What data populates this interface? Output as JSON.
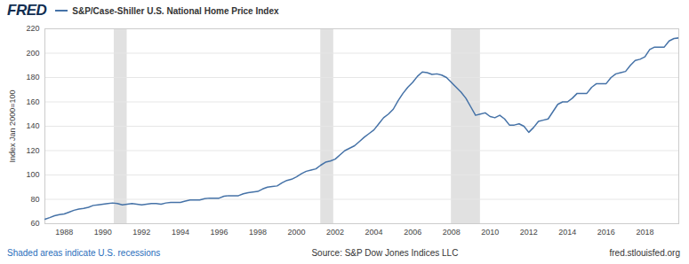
{
  "chart_data": {
    "type": "line",
    "logo": "FRED",
    "ylabel": "Index Jan 2000=100",
    "footnote": "Shaded areas indicate U.S. recessions",
    "source": "Source: S&P Dow Jones Indices LLC",
    "url": "fred.stlouisfed.org",
    "legend": "top-left",
    "grid": true,
    "x": [
      1987,
      1987.25,
      1987.5,
      1987.75,
      1988,
      1988.25,
      1988.5,
      1988.75,
      1989,
      1989.25,
      1989.5,
      1989.75,
      1990,
      1990.25,
      1990.5,
      1990.75,
      1991,
      1991.25,
      1991.5,
      1991.75,
      1992,
      1992.25,
      1992.5,
      1992.75,
      1993,
      1993.25,
      1993.5,
      1993.75,
      1994,
      1994.25,
      1994.5,
      1994.75,
      1995,
      1995.25,
      1995.5,
      1995.75,
      1996,
      1996.25,
      1996.5,
      1996.75,
      1997,
      1997.25,
      1997.5,
      1997.75,
      1998,
      1998.25,
      1998.5,
      1998.75,
      1999,
      1999.25,
      1999.5,
      1999.75,
      2000,
      2000.25,
      2000.5,
      2000.75,
      2001,
      2001.25,
      2001.5,
      2001.75,
      2002,
      2002.25,
      2002.5,
      2002.75,
      2003,
      2003.25,
      2003.5,
      2003.75,
      2004,
      2004.25,
      2004.5,
      2004.75,
      2005,
      2005.25,
      2005.5,
      2005.75,
      2006,
      2006.25,
      2006.5,
      2006.75,
      2007,
      2007.25,
      2007.5,
      2007.75,
      2008,
      2008.25,
      2008.5,
      2008.75,
      2009,
      2009.25,
      2009.5,
      2009.75,
      2010,
      2010.25,
      2010.5,
      2010.75,
      2011,
      2011.25,
      2011.5,
      2011.75,
      2012,
      2012.25,
      2012.5,
      2012.75,
      2013,
      2013.25,
      2013.5,
      2013.75,
      2014,
      2014.25,
      2014.5,
      2014.75,
      2015,
      2015.25,
      2015.5,
      2015.75,
      2016,
      2016.25,
      2016.5,
      2016.75,
      2017,
      2017.25,
      2017.5,
      2017.75,
      2018,
      2018.25,
      2018.5,
      2018.75,
      2019,
      2019.25,
      2019.5,
      2019.75
    ],
    "series": [
      {
        "name": "S&P/Case-Shiller U.S. National Home Price Index",
        "color": "#4572a7",
        "values": [
          63.7,
          65,
          66.5,
          67.5,
          68,
          69.5,
          71,
          72,
          72.5,
          73.5,
          75,
          75.5,
          76,
          76.5,
          77,
          76.5,
          75.5,
          76,
          76.5,
          76,
          75.5,
          76,
          76.5,
          76.5,
          76,
          77,
          77.5,
          77.5,
          77.5,
          78.5,
          79.5,
          79.5,
          79.5,
          80.5,
          81,
          81,
          81,
          82.5,
          83,
          83,
          83,
          84.5,
          85.5,
          86,
          86.5,
          88.5,
          90,
          90.5,
          91,
          93.5,
          95.5,
          96.5,
          98.5,
          101,
          103,
          104,
          105,
          108,
          110.5,
          111.5,
          113,
          116.5,
          120,
          122,
          124,
          127.5,
          131,
          134,
          137,
          142,
          147,
          150,
          154,
          161,
          167,
          172,
          176,
          181,
          184.5,
          184,
          182.5,
          183,
          182,
          180,
          176,
          172,
          168,
          163,
          156,
          149,
          150,
          151,
          148,
          147,
          149,
          146,
          141,
          141,
          142,
          140,
          135,
          139,
          144,
          145,
          146,
          152,
          158,
          160,
          160,
          163,
          167,
          167,
          167,
          172,
          175,
          175,
          175,
          180,
          183,
          184,
          185,
          190,
          194,
          195,
          197,
          203,
          205,
          205,
          205,
          210,
          212,
          212.5
        ]
      }
    ],
    "recessions": [
      {
        "start": 1990.58,
        "end": 1991.25
      },
      {
        "start": 2001.25,
        "end": 2001.92
      },
      {
        "start": 2008.0,
        "end": 2009.5
      }
    ],
    "xlim": [
      1987,
      2019.75
    ],
    "xticks": [
      1988,
      1990,
      1992,
      1994,
      1996,
      1998,
      2000,
      2002,
      2004,
      2006,
      2008,
      2010,
      2012,
      2014,
      2016,
      2018
    ],
    "ylim": [
      60,
      220
    ],
    "yticks": [
      60,
      80,
      100,
      120,
      140,
      160,
      180,
      200,
      220
    ]
  }
}
